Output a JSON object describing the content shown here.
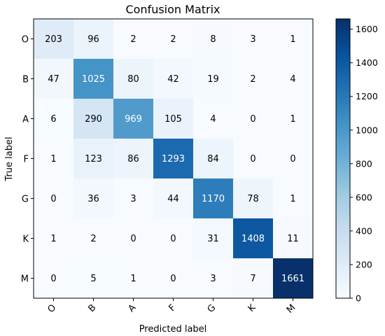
{
  "chart_data": {
    "type": "heatmap",
    "title": "Confusion Matrix",
    "xlabel": "Predicted label",
    "ylabel": "True label",
    "x_categories": [
      "O",
      "B",
      "A",
      "F",
      "G",
      "K",
      "M"
    ],
    "y_categories": [
      "O",
      "B",
      "A",
      "F",
      "G",
      "K",
      "M"
    ],
    "values": [
      [
        203,
        96,
        2,
        2,
        8,
        3,
        1
      ],
      [
        47,
        1025,
        80,
        42,
        19,
        2,
        4
      ],
      [
        6,
        290,
        969,
        105,
        4,
        0,
        1
      ],
      [
        1,
        123,
        86,
        1293,
        84,
        0,
        0
      ],
      [
        0,
        36,
        3,
        44,
        1170,
        78,
        1
      ],
      [
        1,
        2,
        0,
        0,
        31,
        1408,
        11
      ],
      [
        0,
        5,
        1,
        0,
        3,
        7,
        1661
      ]
    ],
    "colorbar": {
      "range": [
        0,
        1661
      ],
      "ticks": [
        0,
        200,
        400,
        600,
        800,
        1000,
        1200,
        1400,
        1600
      ],
      "colormap": "Blues"
    },
    "grid": false
  }
}
